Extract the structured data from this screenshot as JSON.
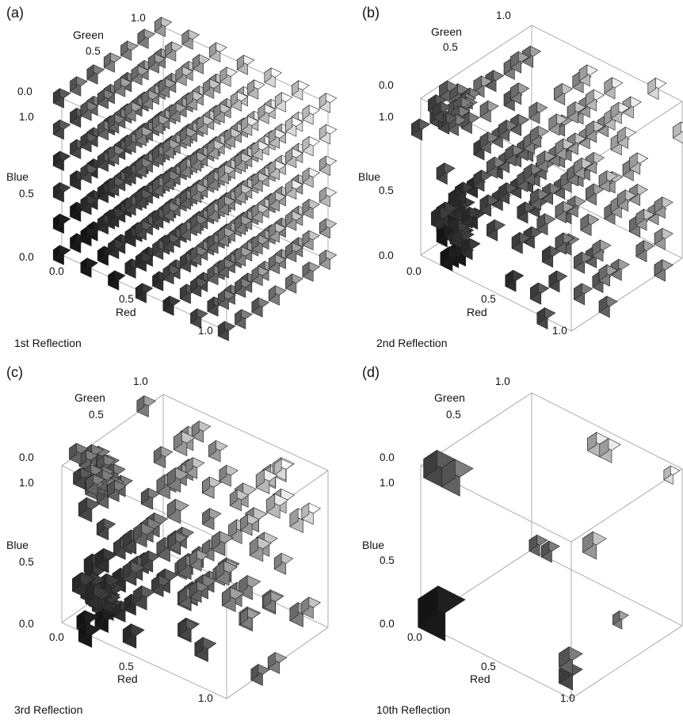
{
  "axes": {
    "red": "Red",
    "green": "Green",
    "blue": "Blue"
  },
  "ticks": {
    "zero": "0.0",
    "half": "0.5",
    "one": "1.0"
  },
  "cube_colors": [
    "#1a1a1a",
    "#333333",
    "#4d4d4d",
    "#6a6a6a",
    "#888888",
    "#a6a6a6",
    "#c8c8c8",
    "#ececec"
  ],
  "panels": [
    {
      "label": "(a)",
      "caption": "1st Reflection",
      "pattern": "uniform-grid"
    },
    {
      "label": "(b)",
      "caption": "2nd Reflection",
      "pattern": "clustered"
    },
    {
      "label": "(c)",
      "caption": "3rd Reflection",
      "pattern": "more-clustered"
    },
    {
      "label": "(d)",
      "caption": "10th Reflection",
      "pattern": "corner-clusters"
    }
  ]
}
